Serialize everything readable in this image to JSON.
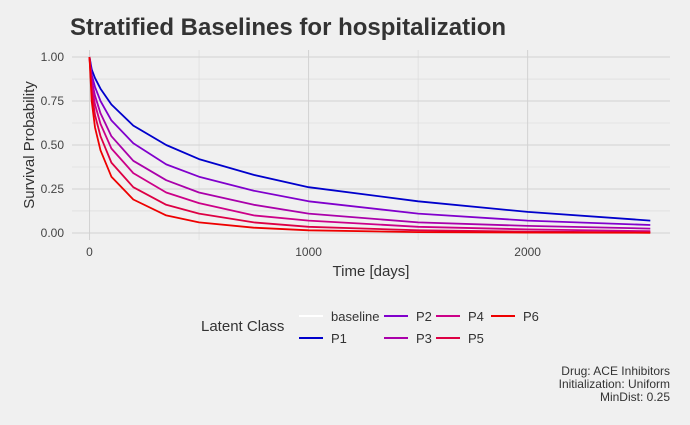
{
  "chart_data": {
    "type": "line",
    "title": "Stratified Baselines for hospitalization",
    "xlabel": "Time [days]",
    "ylabel": "Survival Probability",
    "xlim": [
      -80,
      2650
    ],
    "ylim": [
      -0.04,
      1.04
    ],
    "x_ticks": [
      0,
      1000,
      2000
    ],
    "y_ticks": [
      0.0,
      0.25,
      0.5,
      0.75,
      1.0
    ],
    "y_tick_labels": [
      "0.00",
      "0.25",
      "0.50",
      "0.75",
      "1.00"
    ],
    "grid": true,
    "legend": {
      "title": "Latent Class",
      "position": "bottom"
    },
    "series": [
      {
        "name": "baseline",
        "color": "#ffffff",
        "x": [
          0,
          10,
          25,
          50,
          100,
          200,
          350,
          500,
          750,
          1000,
          1500,
          2000,
          2560
        ],
        "y": [
          1.0,
          0.9,
          0.83,
          0.75,
          0.64,
          0.51,
          0.39,
          0.32,
          0.24,
          0.18,
          0.11,
          0.07,
          0.045
        ]
      },
      {
        "name": "P1",
        "color": "#0000cc",
        "x": [
          0,
          10,
          25,
          50,
          100,
          200,
          350,
          500,
          750,
          1000,
          1500,
          2000,
          2560
        ],
        "y": [
          1.0,
          0.93,
          0.88,
          0.82,
          0.73,
          0.61,
          0.5,
          0.42,
          0.33,
          0.26,
          0.18,
          0.12,
          0.07
        ]
      },
      {
        "name": "P2",
        "color": "#8000cc",
        "x": [
          0,
          10,
          25,
          50,
          100,
          200,
          350,
          500,
          750,
          1000,
          1500,
          2000,
          2560
        ],
        "y": [
          1.0,
          0.9,
          0.83,
          0.75,
          0.64,
          0.51,
          0.39,
          0.32,
          0.24,
          0.18,
          0.11,
          0.07,
          0.045
        ]
      },
      {
        "name": "P3",
        "color": "#aa00aa",
        "x": [
          0,
          10,
          25,
          50,
          100,
          200,
          350,
          500,
          750,
          1000,
          1500,
          2000,
          2560
        ],
        "y": [
          1.0,
          0.87,
          0.78,
          0.68,
          0.55,
          0.41,
          0.3,
          0.23,
          0.16,
          0.11,
          0.06,
          0.04,
          0.025
        ]
      },
      {
        "name": "P4",
        "color": "#cc0088",
        "x": [
          0,
          10,
          25,
          50,
          100,
          200,
          350,
          500,
          750,
          1000,
          1500,
          2000,
          2560
        ],
        "y": [
          1.0,
          0.84,
          0.73,
          0.62,
          0.48,
          0.34,
          0.23,
          0.17,
          0.1,
          0.07,
          0.035,
          0.02,
          0.01
        ]
      },
      {
        "name": "P5",
        "color": "#dd0044",
        "x": [
          0,
          10,
          25,
          50,
          100,
          200,
          350,
          500,
          750,
          1000,
          1500,
          2000,
          2560
        ],
        "y": [
          1.0,
          0.8,
          0.67,
          0.55,
          0.4,
          0.26,
          0.16,
          0.11,
          0.06,
          0.035,
          0.015,
          0.008,
          0.004
        ]
      },
      {
        "name": "P6",
        "color": "#ee0000",
        "x": [
          0,
          10,
          25,
          50,
          100,
          200,
          350,
          500,
          750,
          1000,
          1500,
          2000,
          2560
        ],
        "y": [
          1.0,
          0.75,
          0.6,
          0.47,
          0.32,
          0.19,
          0.1,
          0.06,
          0.03,
          0.015,
          0.005,
          0.002,
          0.001
        ]
      }
    ],
    "caption": [
      "Drug: ACE Inhibitors",
      "Initialization: Uniform",
      "MinDist: 0.25"
    ]
  }
}
